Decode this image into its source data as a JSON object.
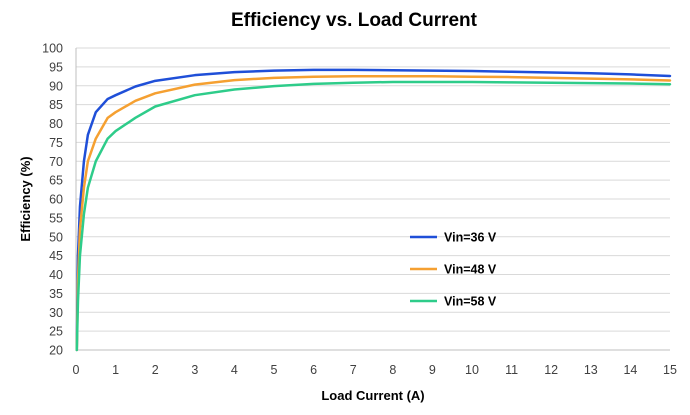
{
  "chart_data": {
    "type": "line",
    "title": "Efficiency vs. Load Current",
    "xlabel": "Load Current (A)",
    "ylabel": "Efficiency (%)",
    "xlim": [
      0,
      15
    ],
    "ylim": [
      20,
      100
    ],
    "x_ticks": [
      0,
      1,
      2,
      3,
      4,
      5,
      6,
      7,
      8,
      9,
      10,
      11,
      12,
      13,
      14,
      15
    ],
    "y_ticks": [
      20,
      25,
      30,
      35,
      40,
      45,
      50,
      55,
      60,
      65,
      70,
      75,
      80,
      85,
      90,
      95,
      100
    ],
    "grid": "horizontal",
    "legend_position": "right-middle",
    "x": [
      0.02,
      0.05,
      0.1,
      0.2,
      0.3,
      0.5,
      0.8,
      1,
      1.5,
      2,
      3,
      4,
      5,
      6,
      7,
      8,
      9,
      10,
      11,
      12,
      13,
      14,
      15
    ],
    "series": [
      {
        "name": "Vin=36 V",
        "color": "#1f4fd8",
        "values": [
          20,
          45,
          58,
          70,
          77,
          83,
          86.5,
          87.5,
          89.8,
          91.3,
          92.8,
          93.6,
          94.0,
          94.2,
          94.2,
          94.1,
          94.0,
          93.9,
          93.7,
          93.5,
          93.3,
          93.0,
          92.6
        ]
      },
      {
        "name": "Vin=48 V",
        "color": "#f5a031",
        "values": [
          20,
          38,
          52,
          63,
          70,
          76,
          81.5,
          83,
          86,
          88,
          90.3,
          91.5,
          92.1,
          92.4,
          92.5,
          92.5,
          92.5,
          92.4,
          92.3,
          92.1,
          91.9,
          91.7,
          91.4
        ]
      },
      {
        "name": "Vin=58 V",
        "color": "#2ecc8a",
        "values": [
          20,
          33,
          45,
          56,
          63,
          70,
          76,
          78,
          81.5,
          84.5,
          87.5,
          89.0,
          89.9,
          90.5,
          90.8,
          91.0,
          91.0,
          91.0,
          90.9,
          90.8,
          90.7,
          90.6,
          90.4
        ]
      }
    ]
  }
}
